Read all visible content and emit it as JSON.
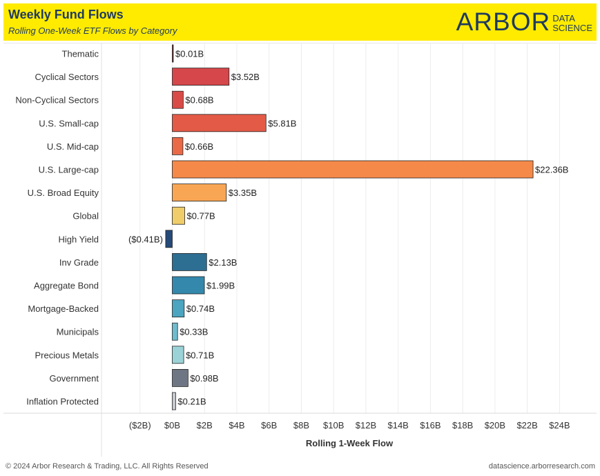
{
  "header": {
    "title": "Weekly Fund Flows",
    "subtitle": "Rolling One-Week ETF Flows by Category",
    "logo_main": "ARBOR",
    "logo_line1": "DATA",
    "logo_line2": "SCIENCE"
  },
  "footer": {
    "copyright": "© 2024 Arbor Research & Trading, LLC. All Rights Reserved",
    "website": "datascience.arborresearch.com"
  },
  "chart_data": {
    "type": "bar",
    "orientation": "horizontal",
    "title": "Weekly Fund Flows",
    "xlabel": "Rolling 1-Week Flow",
    "ylabel": "",
    "xlim": [
      -4,
      26
    ],
    "grid": true,
    "categories": [
      "Thematic",
      "Cyclical Sectors",
      "Non-Cyclical Sectors",
      "U.S. Small-cap",
      "U.S. Mid-cap",
      "U.S. Large-cap",
      "U.S. Broad Equity",
      "Global",
      "High Yield",
      "Inv Grade",
      "Aggregate Bond",
      "Mortgage-Backed",
      "Municipals",
      "Precious Metals",
      "Government",
      "Inflation Protected"
    ],
    "values": [
      0.01,
      3.52,
      0.68,
      5.81,
      0.66,
      22.36,
      3.35,
      0.77,
      -0.41,
      2.13,
      1.99,
      0.74,
      0.33,
      0.71,
      0.98,
      0.21
    ],
    "data_labels": [
      "$0.01B",
      "$3.52B",
      "$0.68B",
      "$5.81B",
      "$0.66B",
      "$22.36B",
      "$3.35B",
      "$0.77B",
      "($0.41B)",
      "$2.13B",
      "$1.99B",
      "$0.74B",
      "$0.33B",
      "$0.71B",
      "$0.98B",
      "$0.21B"
    ],
    "colors": [
      "#7a2b2b",
      "#d5474a",
      "#d84b47",
      "#e35a47",
      "#ea6a48",
      "#f5894a",
      "#f8a653",
      "#f0cd6a",
      "#264a78",
      "#2d6e93",
      "#3388ac",
      "#4ba4c0",
      "#6fbcce",
      "#9bd2d7",
      "#6f7683",
      "#c6c9ce"
    ],
    "ticks": [
      -2,
      0,
      2,
      4,
      6,
      8,
      10,
      12,
      14,
      16,
      18,
      20,
      22,
      24
    ],
    "tick_labels": [
      "($2B)",
      "$0B",
      "$2B",
      "$4B",
      "$6B",
      "$8B",
      "$10B",
      "$12B",
      "$14B",
      "$16B",
      "$18B",
      "$20B",
      "$22B",
      "$24B"
    ]
  }
}
